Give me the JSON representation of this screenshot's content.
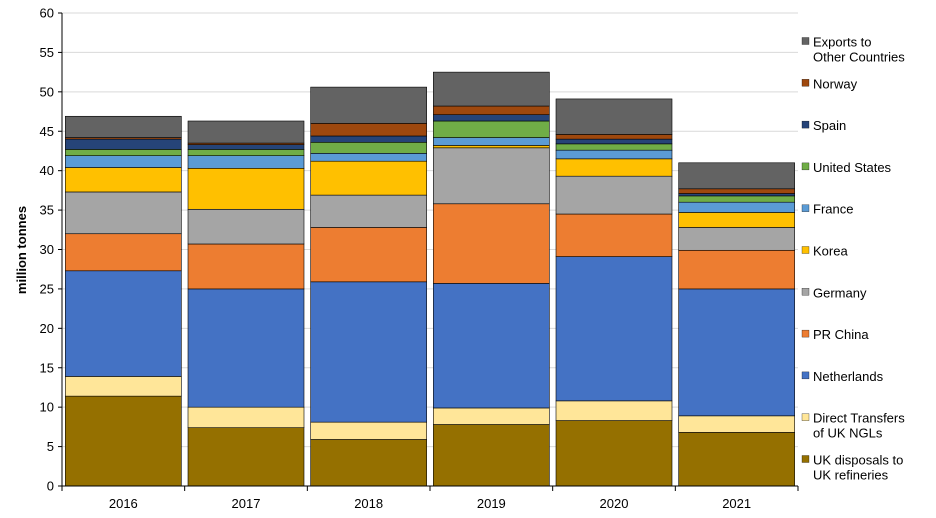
{
  "chart_data": {
    "type": "bar",
    "stacked": true,
    "title": "",
    "xlabel": "",
    "ylabel": "million tonnes",
    "ylim": [
      0,
      60
    ],
    "ytick_step": 5,
    "grid": true,
    "legend_position": "right",
    "categories": [
      "2016",
      "2017",
      "2018",
      "2019",
      "2020",
      "2021"
    ],
    "series": [
      {
        "name": "UK disposals to UK refineries",
        "label_lines": [
          "UK disposals to",
          "UK refineries"
        ],
        "color": "#957000",
        "values": [
          11.4,
          7.4,
          5.9,
          7.8,
          8.3,
          6.8
        ]
      },
      {
        "name": "Direct Transfers of UK NGLs",
        "label_lines": [
          "Direct Transfers",
          "of UK NGLs"
        ],
        "color": "#FFE699",
        "values": [
          2.5,
          2.6,
          2.2,
          2.1,
          2.5,
          2.1
        ]
      },
      {
        "name": "Netherlands",
        "label_lines": [
          "Netherlands"
        ],
        "color": "#4472C4",
        "values": [
          13.4,
          15.0,
          17.8,
          15.8,
          18.3,
          16.1
        ]
      },
      {
        "name": "PR China",
        "label_lines": [
          "PR China"
        ],
        "color": "#ED7D31",
        "values": [
          4.7,
          5.7,
          6.9,
          10.1,
          5.4,
          4.9
        ]
      },
      {
        "name": "Germany",
        "label_lines": [
          "Germany"
        ],
        "color": "#A5A5A5",
        "values": [
          5.3,
          4.4,
          4.1,
          7.1,
          4.8,
          2.9
        ]
      },
      {
        "name": "Korea",
        "label_lines": [
          "Korea"
        ],
        "color": "#FFC000",
        "values": [
          3.1,
          5.2,
          4.3,
          0.3,
          2.2,
          1.9
        ]
      },
      {
        "name": "France",
        "label_lines": [
          "France"
        ],
        "color": "#5B9BD5",
        "values": [
          1.5,
          1.6,
          1.0,
          1.0,
          1.1,
          1.3
        ]
      },
      {
        "name": "United States",
        "label_lines": [
          "United States"
        ],
        "color": "#70AD47",
        "values": [
          0.8,
          0.8,
          1.4,
          2.1,
          0.8,
          0.8
        ]
      },
      {
        "name": "Spain",
        "label_lines": [
          "Spain"
        ],
        "color": "#264478",
        "values": [
          1.3,
          0.6,
          0.8,
          0.8,
          0.6,
          0.3
        ]
      },
      {
        "name": "Norway",
        "label_lines": [
          "Norway"
        ],
        "color": "#9E480E",
        "values": [
          0.2,
          0.2,
          1.6,
          1.1,
          0.6,
          0.6
        ]
      },
      {
        "name": "Exports to Other Countries",
        "label_lines": [
          "Exports to",
          "Other Countries"
        ],
        "color": "#636363",
        "values": [
          2.7,
          2.8,
          4.6,
          4.3,
          4.5,
          3.3
        ]
      }
    ]
  }
}
